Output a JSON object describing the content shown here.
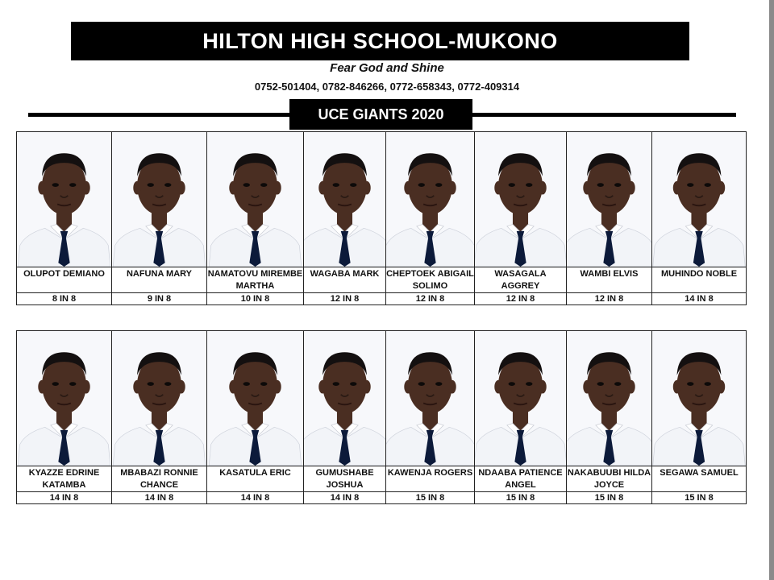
{
  "school": {
    "name": "HILTON HIGH SCHOOL-MUKONO",
    "motto": "Fear God and Shine",
    "phones": "0752-501404, 0782-846266, 0772-658343, 0772-409314"
  },
  "section_title": "UCE GIANTS 2020",
  "students_top": [
    {
      "name": "OLUPOT DEMIANO",
      "score": "8 IN 8"
    },
    {
      "name": "NAFUNA MARY",
      "score": "9 IN 8"
    },
    {
      "name": "NAMATOVU MIREMBE MARTHA",
      "score": "10 IN 8"
    },
    {
      "name": "WAGABA MARK",
      "score": "12 IN 8"
    },
    {
      "name": "CHEPTOEK ABIGAIL SOLIMO",
      "score": "12 IN 8"
    },
    {
      "name": "WASAGALA AGGREY",
      "score": "12 IN 8"
    },
    {
      "name": "WAMBI ELVIS",
      "score": "12 IN 8"
    },
    {
      "name": "MUHINDO NOBLE",
      "score": "14 IN 8"
    }
  ],
  "students_bottom": [
    {
      "name": "KYAZZE EDRINE KATAMBA",
      "score": "14 IN 8"
    },
    {
      "name": "MBABAZI RONNIE CHANCE",
      "score": "14 IN 8"
    },
    {
      "name": "KASATULA ERIC",
      "score": "14 IN 8"
    },
    {
      "name": "GUMUSHABE JOSHUA",
      "score": "14 IN 8"
    },
    {
      "name": "KAWENJA ROGERS",
      "score": "15 IN 8"
    },
    {
      "name": "NDAABA PATIENCE ANGEL",
      "score": "15 IN 8"
    },
    {
      "name": "NAKABUUBI HILDA JOYCE",
      "score": "15 IN 8"
    },
    {
      "name": "SEGAWA SAMUEL",
      "score": "15 IN 8"
    }
  ],
  "colors": {
    "skin": "#4a2e22",
    "hair": "#141010",
    "shirt": "#f2f4f8",
    "tie": "#0c1a3a",
    "background": "#f7f8fb"
  }
}
